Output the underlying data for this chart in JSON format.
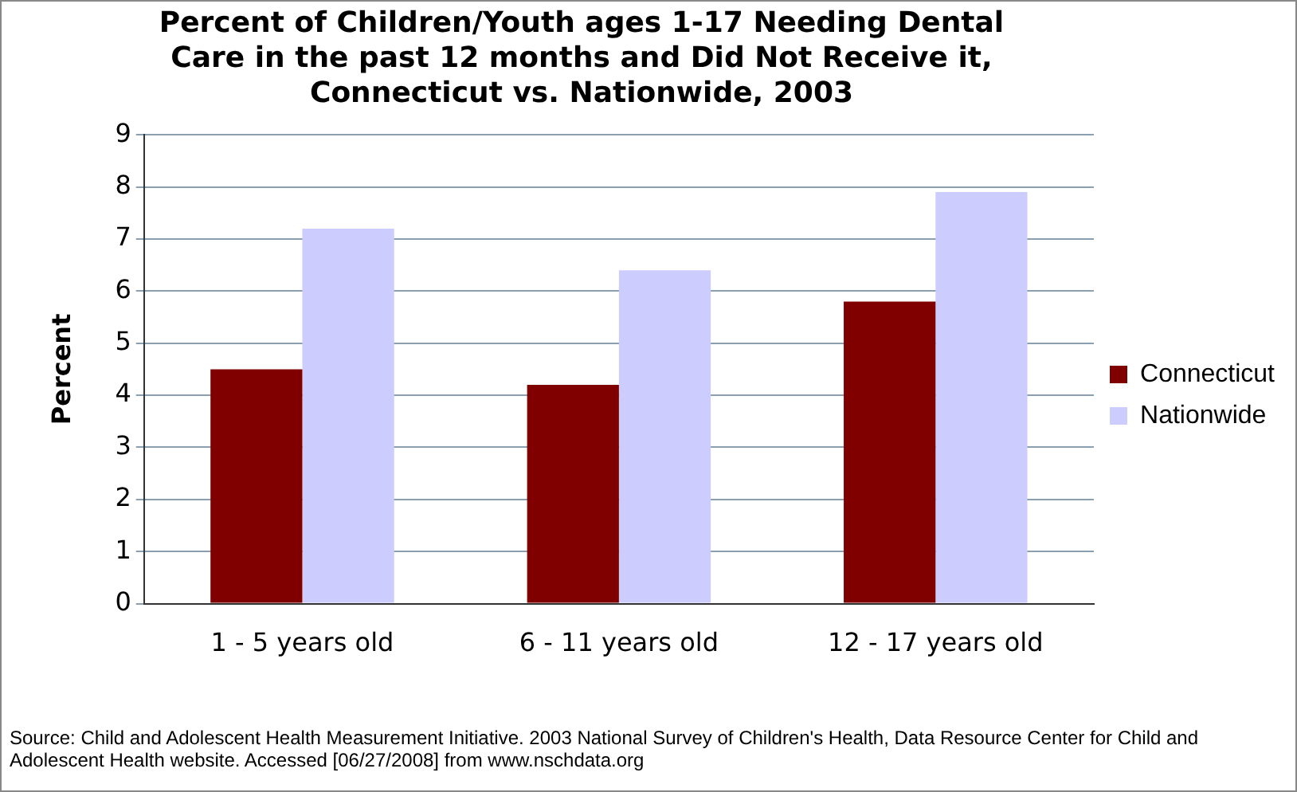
{
  "chart_data": {
    "type": "bar",
    "title": "Percent of Children/Youth ages 1-17 Needing Dental Care in the past 12 months and Did Not Receive it, Connecticut vs. Nationwide, 2003",
    "ylabel": "Percent",
    "categories": [
      "1 - 5 years old",
      "6 - 11 years old",
      "12 - 17 years old"
    ],
    "series": [
      {
        "name": "Connecticut",
        "color": "#800000",
        "values": [
          4.5,
          4.2,
          5.8
        ]
      },
      {
        "name": "Nationwide",
        "color": "#ccccff",
        "values": [
          7.2,
          6.4,
          7.9
        ]
      }
    ],
    "ylim": [
      0,
      9
    ],
    "yticks": [
      0,
      1,
      2,
      3,
      4,
      5,
      6,
      7,
      8,
      9
    ],
    "grid": "y",
    "legend": "right",
    "annotations": [
      "Source: Child and Adolescent Health Measurement Initiative. 2003 National Survey of Children's Health, Data Resource Center for Child and Adolescent Health website. Accessed [06/27/2008] from www.nschdata.org"
    ]
  }
}
